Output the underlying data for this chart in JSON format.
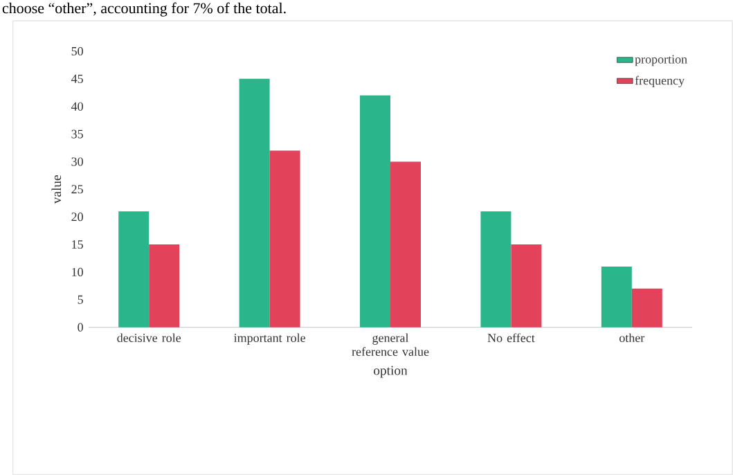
{
  "chart_data": {
    "type": "bar",
    "xlabel": "option",
    "ylabel": "value",
    "annotations": [
      "choose “other”, accounting for 7% of the total."
    ],
    "categories": [
      "decisive role",
      "important role",
      "general reference value",
      "No effect",
      "other"
    ],
    "series": [
      {
        "name": "proportion",
        "color": "#2bb58a",
        "values": [
          21,
          45,
          42,
          21,
          11
        ]
      },
      {
        "name": "frequency",
        "color": "#e2435a",
        "values": [
          15,
          32,
          30,
          15,
          7
        ]
      }
    ],
    "ylim": [
      0,
      50
    ],
    "yticks": [
      0,
      5,
      10,
      15,
      20,
      25,
      30,
      35,
      40,
      45,
      50
    ],
    "grid": false,
    "legend": "top right"
  }
}
